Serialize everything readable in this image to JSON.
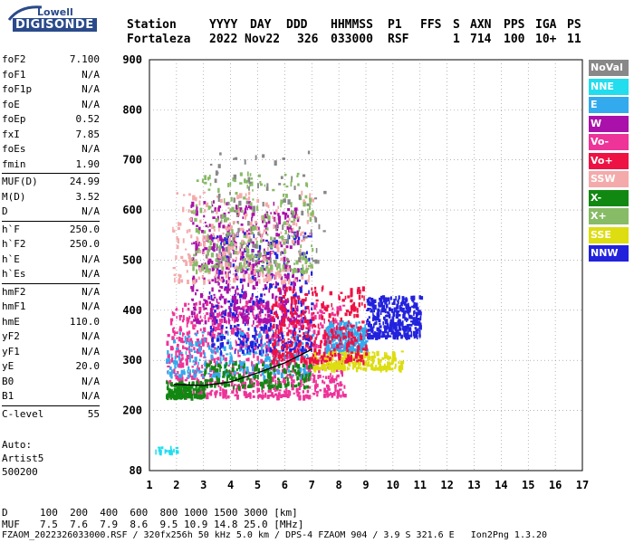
{
  "logo": {
    "line1": "Lowell",
    "line2": "DIGISONDE"
  },
  "header": {
    "labels": [
      "Station",
      "YYYY",
      "DAY",
      "DDD",
      "HHMMSS",
      "P1",
      "FFS",
      "S",
      "AXN",
      "PPS",
      "IGA",
      "PS"
    ],
    "values": [
      "Fortaleza",
      "2022",
      "Nov22",
      "326",
      "033000",
      "RSF",
      "",
      "1",
      "714",
      "100",
      "10+",
      "11"
    ]
  },
  "params": [
    [
      {
        "k": "foF2",
        "v": "7.100"
      },
      {
        "k": "foF1",
        "v": "N/A"
      },
      {
        "k": "foF1p",
        "v": "N/A"
      },
      {
        "k": "foE",
        "v": "N/A"
      },
      {
        "k": "foEp",
        "v": "0.52"
      },
      {
        "k": "fxI",
        "v": "7.85"
      },
      {
        "k": "foEs",
        "v": "N/A"
      },
      {
        "k": "fmin",
        "v": "1.90"
      }
    ],
    [
      {
        "k": "MUF(D)",
        "v": "24.99"
      },
      {
        "k": "M(D)",
        "v": "3.52"
      },
      {
        "k": "D",
        "v": "N/A"
      }
    ],
    [
      {
        "k": "h`F",
        "v": "250.0"
      },
      {
        "k": "h`F2",
        "v": "250.0"
      },
      {
        "k": "h`E",
        "v": "N/A"
      },
      {
        "k": "h`Es",
        "v": "N/A"
      }
    ],
    [
      {
        "k": "hmF2",
        "v": "N/A"
      },
      {
        "k": "hmF1",
        "v": "N/A"
      },
      {
        "k": "hmE",
        "v": "110.0"
      },
      {
        "k": "yF2",
        "v": "N/A"
      },
      {
        "k": "yF1",
        "v": "N/A"
      },
      {
        "k": "yE",
        "v": "20.0"
      },
      {
        "k": "B0",
        "v": "N/A"
      },
      {
        "k": "B1",
        "v": "N/A"
      }
    ],
    [
      {
        "k": "C-level",
        "v": "55"
      }
    ]
  ],
  "auto": {
    "line1": "Auto:",
    "line2": "Artist5",
    "line3": "500200"
  },
  "legend": [
    {
      "label": "NoVal",
      "color": "#888888"
    },
    {
      "label": "NNE",
      "color": "#22ddee"
    },
    {
      "label": "E",
      "color": "#33aaee"
    },
    {
      "label": "W",
      "color": "#aa11aa"
    },
    {
      "label": "Vo-",
      "color": "#ee3399"
    },
    {
      "label": "Vo+",
      "color": "#ee1144"
    },
    {
      "label": "SSW",
      "color": "#f4aaaa"
    },
    {
      "label": "X-",
      "color": "#118811"
    },
    {
      "label": "X+",
      "color": "#88bb66"
    },
    {
      "label": "SSE",
      "color": "#dddd11"
    },
    {
      "label": "NNW",
      "color": "#2222dd"
    }
  ],
  "footer": {
    "d_label": "D",
    "d_values": "100  200  400  600  800 1000 1500 3000 [km]",
    "muf_label": "MUF",
    "muf_values": "7.5  7.6  7.9  8.6  9.5 10.9 14.8 25.0 [MHz]",
    "file_info": "FZAOM_2022326033000.RSF / 320fx256h 50 kHz 5.0 km / DPS-4 FZAOM 904 / 3.9 S 321.6 E   Ion2Png 1.3.20"
  },
  "chart_data": {
    "type": "scatter",
    "title": "",
    "xlabel": "",
    "ylabel": "",
    "xlim": [
      1,
      17
    ],
    "ylim": [
      80,
      900
    ],
    "x_ticks": [
      1,
      2,
      3,
      4,
      5,
      6,
      7,
      8,
      9,
      10,
      11,
      12,
      13,
      14,
      15,
      16,
      17
    ],
    "y_ticks": [
      80,
      200,
      300,
      400,
      500,
      600,
      700,
      800,
      900
    ],
    "grid": true,
    "legend_position": "right",
    "series": [
      {
        "name": "Vo-",
        "clusters": [
          {
            "x": [
              1.6,
              8.2
            ],
            "y": [
              230,
              420
            ]
          }
        ]
      },
      {
        "name": "E",
        "clusters": [
          {
            "x": [
              1.6,
              7.0
            ],
            "y": [
              270,
              360
            ]
          },
          {
            "x": [
              7.5,
              9.0
            ],
            "y": [
              320,
              380
            ]
          }
        ]
      },
      {
        "name": "NNW",
        "clusters": [
          {
            "x": [
              3.2,
              7.0
            ],
            "y": [
              320,
              560
            ]
          },
          {
            "x": [
              9.0,
              11.0
            ],
            "y": [
              350,
              430
            ]
          }
        ]
      },
      {
        "name": "X-",
        "clusters": [
          {
            "x": [
              1.6,
              3.0
            ],
            "y": [
              230,
              260
            ]
          },
          {
            "x": [
              3.0,
              7.0
            ],
            "y": [
              250,
              300
            ]
          }
        ]
      },
      {
        "name": "SSE",
        "clusters": [
          {
            "x": [
              7.0,
              10.3
            ],
            "y": [
              285,
              320
            ]
          }
        ]
      },
      {
        "name": "W",
        "clusters": [
          {
            "x": [
              2.5,
              6.5
            ],
            "y": [
              380,
              620
            ]
          }
        ]
      },
      {
        "name": "Vo+",
        "clusters": [
          {
            "x": [
              5.5,
              9.0
            ],
            "y": [
              300,
              450
            ]
          }
        ]
      },
      {
        "name": "SSW",
        "clusters": [
          {
            "x": [
              1.8,
              7.0
            ],
            "y": [
              460,
              640
            ]
          }
        ]
      },
      {
        "name": "X+",
        "clusters": [
          {
            "x": [
              2.5,
              7.0
            ],
            "y": [
              480,
              680
            ]
          }
        ]
      },
      {
        "name": "NNE",
        "clusters": [
          {
            "x": [
              1.2,
              2.0
            ],
            "y": [
              120,
              130
            ]
          }
        ]
      },
      {
        "name": "NoVal",
        "clusters": [
          {
            "x": [
              3.0,
              7.5
            ],
            "y": [
              500,
              720
            ]
          }
        ]
      }
    ],
    "trace": {
      "x": [
        1.9,
        3.0,
        4.0,
        5.0,
        6.0,
        7.0
      ],
      "y": [
        252,
        250,
        257,
        275,
        295,
        322
      ]
    }
  }
}
